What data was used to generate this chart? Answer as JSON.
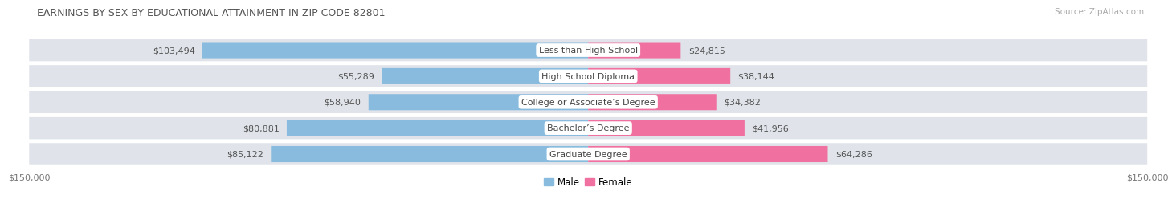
{
  "title": "EARNINGS BY SEX BY EDUCATIONAL ATTAINMENT IN ZIP CODE 82801",
  "source": "Source: ZipAtlas.com",
  "categories": [
    "Less than High School",
    "High School Diploma",
    "College or Associate’s Degree",
    "Bachelor’s Degree",
    "Graduate Degree"
  ],
  "male_values": [
    103494,
    55289,
    58940,
    80881,
    85122
  ],
  "female_values": [
    24815,
    38144,
    34382,
    41956,
    64286
  ],
  "male_color": "#88bbdd",
  "female_color": "#f070a0",
  "xlim": 150000,
  "x_tick_labels": [
    "$150,000",
    "$150,000"
  ],
  "bar_height": 0.62,
  "bg_color": "#ffffff",
  "row_bg_color": "#e0e4ea",
  "title_fontsize": 9,
  "source_fontsize": 7.5,
  "label_fontsize": 8,
  "value_fontsize": 8,
  "legend_fontsize": 8.5,
  "tick_fontsize": 8
}
